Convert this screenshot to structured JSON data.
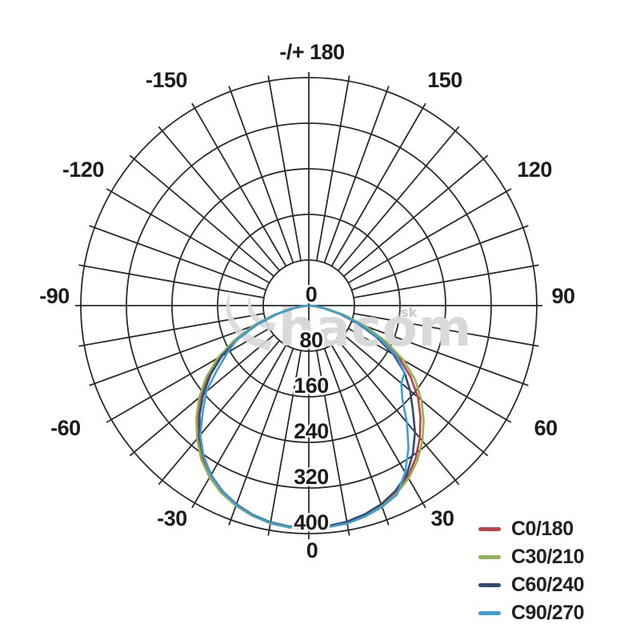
{
  "page": {
    "background": "#ffffff"
  },
  "watermark": {
    "text": "hacom",
    "suffix": ".sk",
    "color": "#d9d9d9",
    "suffix_color": "#c9c9c9"
  },
  "chart_data": {
    "type": "line",
    "coordinate": "polar",
    "title": "",
    "grid_color": "#2b2b2b",
    "angle_step_deg": 10,
    "radial_ticks": [
      0,
      80,
      160,
      240,
      320,
      400
    ],
    "rlim": [
      0,
      400
    ],
    "angle_labels": [
      {
        "angle": 180,
        "label": "-/+ 180"
      },
      {
        "angle": -150,
        "label": "-150"
      },
      {
        "angle": 150,
        "label": "150"
      },
      {
        "angle": -120,
        "label": "-120"
      },
      {
        "angle": 120,
        "label": "120"
      },
      {
        "angle": -90,
        "label": "-90"
      },
      {
        "angle": 90,
        "label": "90"
      },
      {
        "angle": -60,
        "label": "-60"
      },
      {
        "angle": 60,
        "label": "60"
      },
      {
        "angle": -30,
        "label": "-30"
      },
      {
        "angle": 30,
        "label": "30"
      },
      {
        "angle": 0,
        "label": "0"
      }
    ],
    "angles": [
      -90,
      -85,
      -80,
      -75,
      -70,
      -65,
      -60,
      -55,
      -50,
      -45,
      -40,
      -35,
      -30,
      -25,
      -20,
      -15,
      -10,
      -5,
      0,
      5,
      10,
      15,
      20,
      25,
      30,
      35,
      40,
      45,
      50,
      55,
      60,
      65,
      70,
      75,
      80,
      85,
      90
    ],
    "series": [
      {
        "name": "C0/180",
        "color": "#bb4449",
        "values": [
          2,
          10,
          30,
          62,
          100,
          141,
          181,
          216,
          248,
          276,
          302,
          326,
          346,
          361,
          373,
          381,
          387,
          390,
          391,
          389,
          386,
          381,
          373,
          362,
          347,
          327,
          303,
          277,
          250,
          218,
          183,
          142,
          100,
          62,
          30,
          10,
          2
        ]
      },
      {
        "name": "C30/210",
        "color": "#90b354",
        "values": [
          2,
          11,
          32,
          65,
          104,
          145,
          185,
          220,
          251,
          279,
          305,
          329,
          348,
          363,
          374,
          382,
          388,
          391,
          392,
          390,
          387,
          382,
          375,
          364,
          350,
          332,
          310,
          285,
          258,
          228,
          192,
          150,
          106,
          66,
          32,
          11,
          2
        ]
      },
      {
        "name": "C60/240",
        "color": "#344a74",
        "values": [
          2,
          9,
          28,
          58,
          96,
          136,
          176,
          210,
          242,
          271,
          298,
          322,
          343,
          359,
          371,
          380,
          386,
          389,
          390,
          388,
          385,
          379,
          371,
          359,
          343,
          318,
          290,
          258,
          232,
          205,
          172,
          132,
          92,
          56,
          26,
          9,
          2
        ]
      },
      {
        "name": "C90/270",
        "color": "#3f9fd4",
        "values": [
          2,
          10,
          29,
          60,
          98,
          138,
          165,
          196,
          235,
          263,
          296,
          322,
          344,
          360,
          372,
          381,
          387,
          390,
          391,
          390,
          388,
          383,
          376,
          366,
          338,
          305,
          268,
          232,
          212,
          205,
          178,
          138,
          96,
          58,
          28,
          10,
          2
        ]
      }
    ],
    "legend": {
      "position": "bottom-right",
      "items": [
        "C0/180",
        "C30/210",
        "C60/240",
        "C90/270"
      ]
    }
  }
}
